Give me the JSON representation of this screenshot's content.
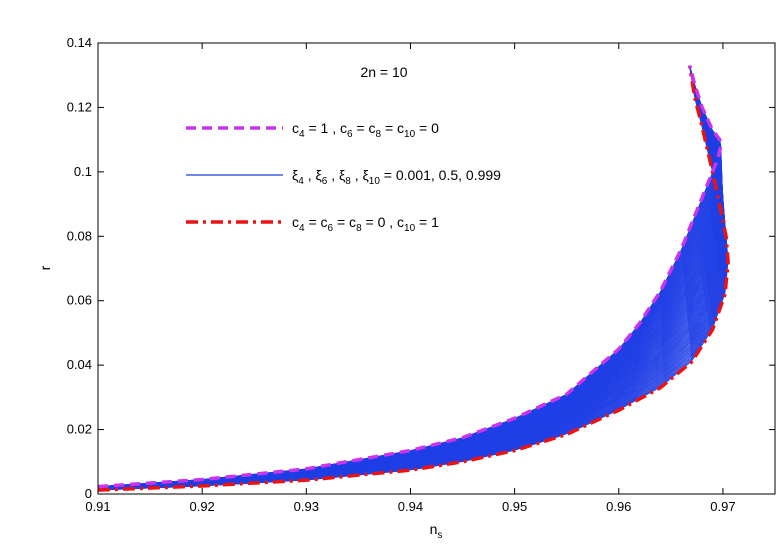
{
  "chart_data": {
    "type": "line",
    "title": "",
    "xlabel": {
      "base": "n",
      "sub": "s"
    },
    "ylabel": "r",
    "xlim": [
      0.91,
      0.975
    ],
    "ylim": [
      0,
      0.14
    ],
    "xticks": [
      0.91,
      0.92,
      0.93,
      0.94,
      0.95,
      0.96,
      0.97
    ],
    "xtick_labels": [
      "0.91",
      "0.92",
      "0.93",
      "0.94",
      "0.95",
      "0.96",
      "0.97"
    ],
    "yticks": [
      0,
      0.02,
      0.04,
      0.06,
      0.08,
      0.1,
      0.12,
      0.14
    ],
    "ytick_labels": [
      "0",
      "0.02",
      "0.04",
      "0.06",
      "0.08",
      "0.1",
      "0.12",
      "0.14"
    ],
    "grid": false,
    "legend_position": "upper-left",
    "annotation": "2n = 10",
    "legend": [
      {
        "series": "upper",
        "parts": [
          {
            "t": "c"
          },
          {
            "t": "4",
            "s": true
          },
          {
            "t": " = 1 , c"
          },
          {
            "t": "6",
            "s": true
          },
          {
            "t": " = c"
          },
          {
            "t": "8",
            "s": true
          },
          {
            "t": " = c"
          },
          {
            "t": "10",
            "s": true
          },
          {
            "t": " = 0"
          }
        ]
      },
      {
        "series": "family",
        "parts": [
          {
            "t": "ξ"
          },
          {
            "t": "4",
            "s": true
          },
          {
            "t": " , ξ"
          },
          {
            "t": "6",
            "s": true
          },
          {
            "t": " , ξ"
          },
          {
            "t": "8",
            "s": true
          },
          {
            "t": " , ξ"
          },
          {
            "t": "10",
            "s": true
          },
          {
            "t": " = 0.001, 0.5, 0.999"
          }
        ]
      },
      {
        "series": "lower",
        "parts": [
          {
            "t": "c"
          },
          {
            "t": "4",
            "s": true
          },
          {
            "t": " = c"
          },
          {
            "t": "6",
            "s": true
          },
          {
            "t": " = c"
          },
          {
            "t": "8",
            "s": true
          },
          {
            "t": " = 0 , c"
          },
          {
            "t": "10",
            "s": true
          },
          {
            "t": " = 1"
          }
        ]
      }
    ],
    "series": [
      {
        "id": "upper",
        "color": "#cc33ee",
        "style": "dashed",
        "x": [
          0.91,
          0.92,
          0.93,
          0.94,
          0.945,
          0.95,
          0.955,
          0.96,
          0.962,
          0.964,
          0.966,
          0.967,
          0.968,
          0.969,
          0.9695,
          0.9698,
          0.9697,
          0.969,
          0.968,
          0.9673,
          0.9668
        ],
        "y": [
          0.0023,
          0.0045,
          0.0078,
          0.0135,
          0.0175,
          0.0235,
          0.031,
          0.045,
          0.053,
          0.063,
          0.076,
          0.084,
          0.092,
          0.1,
          0.104,
          0.108,
          0.11,
          0.113,
          0.12,
          0.127,
          0.133
        ]
      },
      {
        "id": "lower",
        "color": "#ee1111",
        "style": "dashdot",
        "x": [
          0.91,
          0.92,
          0.93,
          0.94,
          0.945,
          0.95,
          0.955,
          0.96,
          0.964,
          0.967,
          0.969,
          0.9702,
          0.9705,
          0.9703,
          0.9698,
          0.969,
          0.968,
          0.9673,
          0.9668
        ],
        "y": [
          0.0012,
          0.0025,
          0.0043,
          0.0074,
          0.01,
          0.0135,
          0.0185,
          0.026,
          0.033,
          0.041,
          0.051,
          0.062,
          0.072,
          0.08,
          0.088,
          0.1,
          0.114,
          0.123,
          0.133
        ]
      }
    ],
    "family": {
      "name": "ξ4 , ξ6 , ξ8 , ξ10 = 0.001, 0.5, 0.999",
      "color": "#1f3fe6",
      "count": 81,
      "description": "81 curves lying between the upper and lower boundary curves"
    }
  }
}
